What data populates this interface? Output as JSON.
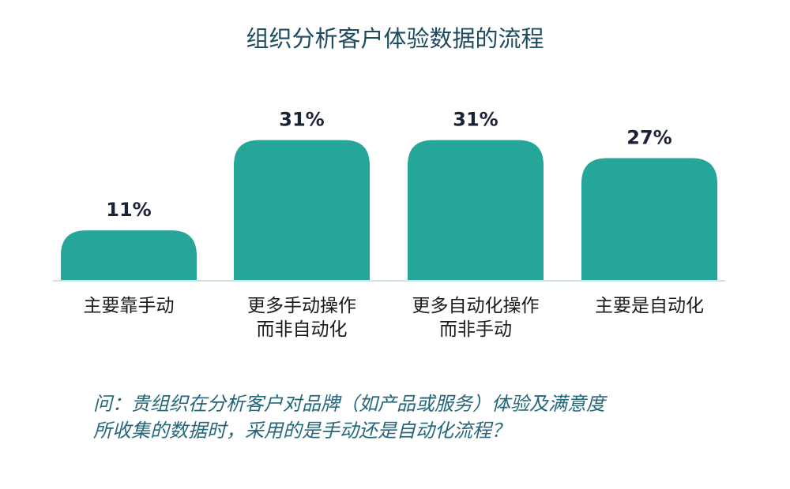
{
  "title": "组织分析客户体验数据的流程",
  "question": {
    "line1": "问：贵组织在分析客户对品牌（如产品或服务）体验及满意度",
    "line2": "所收集的数据时，采用的是手动还是自动化流程？"
  },
  "colors": {
    "bar": "#26a698",
    "label": "#1a2238",
    "baseline": "#cfe0e6"
  },
  "chart_data": {
    "type": "bar",
    "title": "组织分析客户体验数据的流程",
    "categories": [
      [
        "主要靠手动"
      ],
      [
        "更多手动操作",
        "而非自动化"
      ],
      [
        "更多自动化操作",
        "而非手动"
      ],
      [
        "主要是自动化"
      ]
    ],
    "values": [
      11,
      31,
      31,
      27
    ],
    "value_labels": [
      "11%",
      "31%",
      "31%",
      "27%"
    ],
    "unit": "%",
    "ylim": [
      0,
      31
    ],
    "grid": false,
    "legend": "none"
  }
}
